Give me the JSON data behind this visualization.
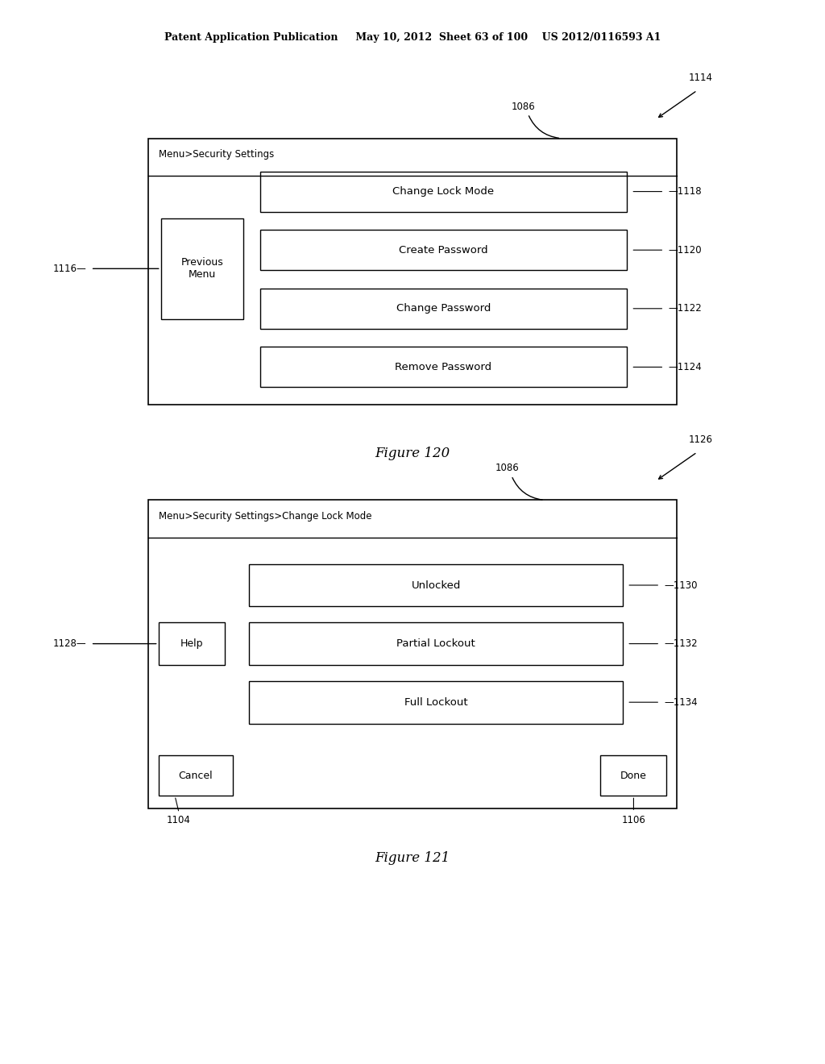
{
  "bg_color": "#ffffff",
  "header_text": "Patent Application Publication     May 10, 2012  Sheet 63 of 100    US 2012/0116593 A1",
  "fig1": {
    "title": "Figure 120",
    "label_1086": "1086",
    "label_1114": "1114",
    "header_label": "Menu>Security Settings",
    "prev_btn_label": "Previous\nMenu",
    "ref_prev": "1116",
    "buttons": [
      {
        "label": "Change Lock Mode",
        "ref": "1118"
      },
      {
        "label": "Create Password",
        "ref": "1120"
      },
      {
        "label": "Change Password",
        "ref": "1122"
      },
      {
        "label": "Remove Password",
        "ref": "1124"
      }
    ]
  },
  "fig2": {
    "title": "Figure 121",
    "label_1086": "1086",
    "label_1126": "1126",
    "header_label": "Menu>Security Settings>Change Lock Mode",
    "help_btn_label": "Help",
    "ref_help": "1128",
    "buttons": [
      {
        "label": "Unlocked",
        "ref": "1130"
      },
      {
        "label": "Partial Lockout",
        "ref": "1132"
      },
      {
        "label": "Full Lockout",
        "ref": "1134"
      }
    ],
    "cancel_label": "Cancel",
    "done_label": "Done",
    "ref_cancel": "1104",
    "ref_done": "1106"
  }
}
